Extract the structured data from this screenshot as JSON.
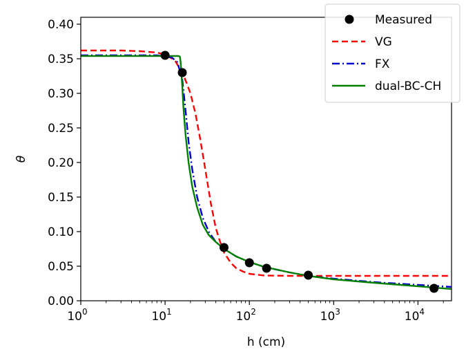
{
  "chart_data": {
    "type": "line",
    "title": "",
    "xlabel": "h (cm)",
    "ylabel": "θ",
    "xscale": "log",
    "xlim": [
      1,
      25000
    ],
    "ylim": [
      0.0,
      0.41
    ],
    "x_ticks": [
      {
        "value": 1,
        "base": "10",
        "exp": "0"
      },
      {
        "value": 10,
        "base": "10",
        "exp": "1"
      },
      {
        "value": 100,
        "base": "10",
        "exp": "2"
      },
      {
        "value": 1000,
        "base": "10",
        "exp": "3"
      },
      {
        "value": 10000,
        "base": "10",
        "exp": "4"
      }
    ],
    "y_ticks": [
      {
        "value": 0.0,
        "label": "0.00"
      },
      {
        "value": 0.05,
        "label": "0.05"
      },
      {
        "value": 0.1,
        "label": "0.10"
      },
      {
        "value": 0.15,
        "label": "0.15"
      },
      {
        "value": 0.2,
        "label": "0.20"
      },
      {
        "value": 0.25,
        "label": "0.25"
      },
      {
        "value": 0.3,
        "label": "0.30"
      },
      {
        "value": 0.35,
        "label": "0.35"
      },
      {
        "value": 0.4,
        "label": "0.40"
      }
    ],
    "legend_position": "top-right",
    "series": [
      {
        "name": "Measured",
        "style": "marker",
        "color": "#000000",
        "points": [
          [
            10,
            0.355
          ],
          [
            16,
            0.33
          ],
          [
            50,
            0.077
          ],
          [
            100,
            0.055
          ],
          [
            160,
            0.047
          ],
          [
            500,
            0.037
          ],
          [
            15500,
            0.018
          ]
        ]
      },
      {
        "name": "VG",
        "style": "dashed",
        "color": "#ff0000",
        "points": [
          [
            1,
            0.362
          ],
          [
            3,
            0.362
          ],
          [
            5,
            0.361
          ],
          [
            8,
            0.359
          ],
          [
            10,
            0.356
          ],
          [
            13,
            0.348
          ],
          [
            16,
            0.33
          ],
          [
            18,
            0.315
          ],
          [
            20,
            0.3
          ],
          [
            23,
            0.27
          ],
          [
            26,
            0.235
          ],
          [
            30,
            0.19
          ],
          [
            35,
            0.14
          ],
          [
            40,
            0.105
          ],
          [
            45,
            0.085
          ],
          [
            50,
            0.07
          ],
          [
            60,
            0.055
          ],
          [
            70,
            0.047
          ],
          [
            85,
            0.042
          ],
          [
            100,
            0.039
          ],
          [
            150,
            0.0365
          ],
          [
            300,
            0.036
          ],
          [
            1000,
            0.036
          ],
          [
            25000,
            0.036
          ]
        ]
      },
      {
        "name": "FX",
        "style": "dashdot",
        "color": "#0000cc",
        "points": [
          [
            1,
            0.355
          ],
          [
            8,
            0.355
          ],
          [
            12,
            0.352
          ],
          [
            14,
            0.345
          ],
          [
            16,
            0.32
          ],
          [
            17,
            0.29
          ],
          [
            18,
            0.26
          ],
          [
            19,
            0.23
          ],
          [
            21,
            0.19
          ],
          [
            24,
            0.15
          ],
          [
            28,
            0.12
          ],
          [
            33,
            0.1
          ],
          [
            40,
            0.085
          ],
          [
            50,
            0.075
          ],
          [
            70,
            0.064
          ],
          [
            100,
            0.056
          ],
          [
            150,
            0.049
          ],
          [
            300,
            0.041
          ],
          [
            500,
            0.036
          ],
          [
            1000,
            0.032
          ],
          [
            3000,
            0.027
          ],
          [
            10000,
            0.023
          ],
          [
            25000,
            0.02
          ]
        ]
      },
      {
        "name": "dual-BC-CH",
        "style": "solid",
        "color": "#008000",
        "points": [
          [
            1,
            0.354
          ],
          [
            14.5,
            0.354
          ],
          [
            15,
            0.353
          ],
          [
            15.3,
            0.345
          ],
          [
            15.6,
            0.33
          ],
          [
            16,
            0.31
          ],
          [
            16.5,
            0.28
          ],
          [
            17.5,
            0.24
          ],
          [
            19,
            0.2
          ],
          [
            21,
            0.165
          ],
          [
            24,
            0.135
          ],
          [
            28,
            0.11
          ],
          [
            33,
            0.095
          ],
          [
            40,
            0.085
          ],
          [
            50,
            0.075
          ],
          [
            70,
            0.064
          ],
          [
            100,
            0.056
          ],
          [
            150,
            0.049
          ],
          [
            300,
            0.041
          ],
          [
            500,
            0.036
          ],
          [
            1000,
            0.031
          ],
          [
            3000,
            0.026
          ],
          [
            10000,
            0.021
          ],
          [
            25000,
            0.017
          ]
        ]
      }
    ]
  }
}
